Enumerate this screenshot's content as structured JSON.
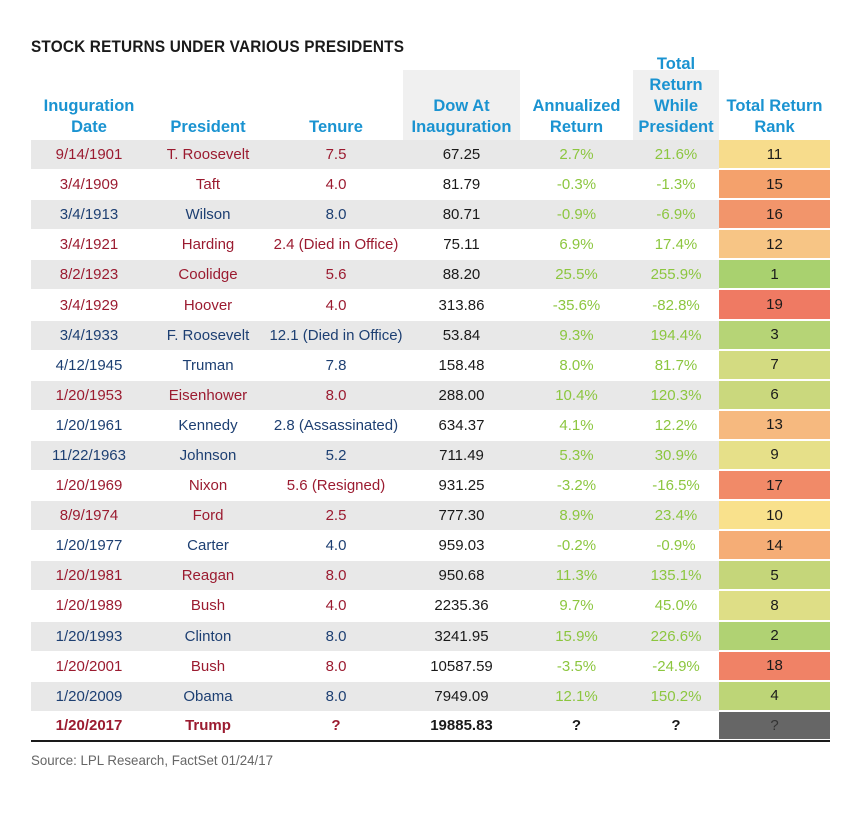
{
  "title": "STOCK RETURNS UNDER VARIOUS PRESIDENTS",
  "source": "Source: LPL Research, FactSet   01/24/17",
  "colors": {
    "header": "#1a93d1",
    "republican": "#9b1b30",
    "democrat": "#1d3f72",
    "return_text": "#8cc63f"
  },
  "chart_data": {
    "type": "table",
    "title": "STOCK RETURNS UNDER VARIOUS PRESIDENTS",
    "columns": [
      "Inuguration\nDate",
      "President",
      "Tenure",
      "Dow At\nInauguration",
      "Annualized\nReturn",
      "Total Return\nWhile\nPresident",
      "Total Return\nRank"
    ],
    "rows": [
      {
        "date": "9/14/1901",
        "president": "T. Roosevelt",
        "tenure": "7.5",
        "dow": "67.25",
        "annualized": "2.7%",
        "total": "21.6%",
        "rank": "11",
        "party": "red",
        "rank_color": "#f7dc8c"
      },
      {
        "date": "3/4/1909",
        "president": "Taft",
        "tenure": "4.0",
        "dow": "81.79",
        "annualized": "-0.3%",
        "total": "-1.3%",
        "rank": "15",
        "party": "red",
        "rank_color": "#f4a16c"
      },
      {
        "date": "3/4/1913",
        "president": "Wilson",
        "tenure": "8.0",
        "dow": "80.71",
        "annualized": "-0.9%",
        "total": "-6.9%",
        "rank": "16",
        "party": "blue",
        "rank_color": "#f2956b"
      },
      {
        "date": "3/4/1921",
        "president": "Harding",
        "tenure": "2.4 (Died in Office)",
        "dow": "75.11",
        "annualized": "6.9%",
        "total": "17.4%",
        "rank": "12",
        "party": "red",
        "rank_color": "#f7c585"
      },
      {
        "date": "8/2/1923",
        "president": "Coolidge",
        "tenure": "5.6",
        "dow": "88.20",
        "annualized": "25.5%",
        "total": "255.9%",
        "rank": "1",
        "party": "red",
        "rank_color": "#a9d16f"
      },
      {
        "date": "3/4/1929",
        "president": "Hoover",
        "tenure": "4.0",
        "dow": "313.86",
        "annualized": "-35.6%",
        "total": "-82.8%",
        "rank": "19",
        "party": "red",
        "rank_color": "#ef7a63"
      },
      {
        "date": "3/4/1933",
        "president": "F. Roosevelt",
        "tenure": "12.1 (Died in Office)",
        "dow": "53.84",
        "annualized": "9.3%",
        "total": "194.4%",
        "rank": "3",
        "party": "blue",
        "rank_color": "#b6d476"
      },
      {
        "date": "4/12/1945",
        "president": "Truman",
        "tenure": "7.8",
        "dow": "158.48",
        "annualized": "8.0%",
        "total": "81.7%",
        "rank": "7",
        "party": "blue",
        "rank_color": "#d3db81"
      },
      {
        "date": "1/20/1953",
        "president": "Eisenhower",
        "tenure": "8.0",
        "dow": "288.00",
        "annualized": "10.4%",
        "total": "120.3%",
        "rank": "6",
        "party": "red",
        "rank_color": "#cad87d"
      },
      {
        "date": "1/20/1961",
        "president": "Kennedy",
        "tenure": "2.8 (Assassinated)",
        "dow": "634.37",
        "annualized": "4.1%",
        "total": "12.2%",
        "rank": "13",
        "party": "blue",
        "rank_color": "#f6b97f"
      },
      {
        "date": "11/22/1963",
        "president": "Johnson",
        "tenure": "5.2",
        "dow": "711.49",
        "annualized": "5.3%",
        "total": "30.9%",
        "rank": "9",
        "party": "blue",
        "rank_color": "#e6e089"
      },
      {
        "date": "1/20/1969",
        "president": "Nixon",
        "tenure": "5.6 (Resigned)",
        "dow": "931.25",
        "annualized": "-3.2%",
        "total": "-16.5%",
        "rank": "17",
        "party": "red",
        "rank_color": "#f18a68"
      },
      {
        "date": "8/9/1974",
        "president": "Ford",
        "tenure": "2.5",
        "dow": "777.30",
        "annualized": "8.9%",
        "total": "23.4%",
        "rank": "10",
        "party": "red",
        "rank_color": "#f9e18c"
      },
      {
        "date": "1/20/1977",
        "president": "Carter",
        "tenure": "4.0",
        "dow": "959.03",
        "annualized": "-0.2%",
        "total": "-0.9%",
        "rank": "14",
        "party": "blue",
        "rank_color": "#f5ad76"
      },
      {
        "date": "1/20/1981",
        "president": "Reagan",
        "tenure": "8.0",
        "dow": "950.68",
        "annualized": "11.3%",
        "total": "135.1%",
        "rank": "5",
        "party": "red",
        "rank_color": "#c5d67a"
      },
      {
        "date": "1/20/1989",
        "president": "Bush",
        "tenure": "4.0",
        "dow": "2235.36",
        "annualized": "9.7%",
        "total": "45.0%",
        "rank": "8",
        "party": "red",
        "rank_color": "#dede86"
      },
      {
        "date": "1/20/1993",
        "president": "Clinton",
        "tenure": "8.0",
        "dow": "3241.95",
        "annualized": "15.9%",
        "total": "226.6%",
        "rank": "2",
        "party": "blue",
        "rank_color": "#b0d273"
      },
      {
        "date": "1/20/2001",
        "president": "Bush",
        "tenure": "8.0",
        "dow": "10587.59",
        "annualized": "-3.5%",
        "total": "-24.9%",
        "rank": "18",
        "party": "red",
        "rank_color": "#f08266"
      },
      {
        "date": "1/20/2009",
        "president": "Obama",
        "tenure": "8.0",
        "dow": "7949.09",
        "annualized": "12.1%",
        "total": "150.2%",
        "rank": "4",
        "party": "blue",
        "rank_color": "#bdd577"
      },
      {
        "date": "1/20/2017",
        "president": "Trump",
        "tenure": "?",
        "dow": "19885.83",
        "annualized": "?",
        "total": "?",
        "rank": "?",
        "party": "red",
        "rank_color": "#666666"
      }
    ]
  }
}
